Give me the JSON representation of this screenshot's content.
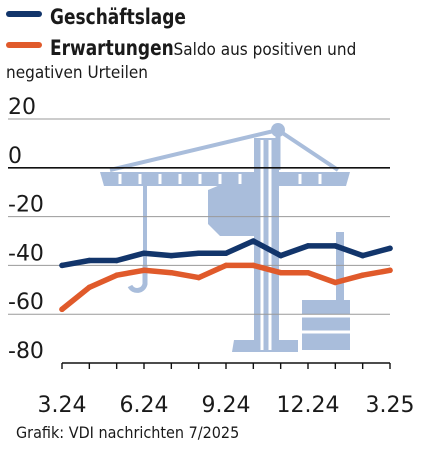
{
  "chart_data": {
    "type": "line",
    "title": "",
    "xlabel": "",
    "ylabel": "",
    "ylim": [
      -80,
      20
    ],
    "yticks": [
      20,
      0,
      -20,
      -40,
      -60,
      -80
    ],
    "x_tick_labels": [
      "3.24",
      "6.24",
      "9.24",
      "12.24",
      "3.25"
    ],
    "x": [
      "3.24",
      "4.24",
      "5.24",
      "6.24",
      "7.24",
      "8.24",
      "9.24",
      "10.24",
      "11.24",
      "12.24",
      "1.25",
      "2.25",
      "3.25"
    ],
    "series": [
      {
        "name": "Geschäftslage",
        "color": "#12356b",
        "values": [
          -40,
          -38,
          -38,
          -35,
          -36,
          -35,
          -35,
          -30,
          -36,
          -32,
          -32,
          -36,
          -33
        ]
      },
      {
        "name": "Erwartungen",
        "color": "#e05a2b",
        "values": [
          -58,
          -49,
          -44,
          -42,
          -43,
          -45,
          -40,
          -40,
          -43,
          -43,
          -47,
          -44,
          -42
        ]
      }
    ],
    "grid": true,
    "legend_position": "top-left"
  },
  "legend": {
    "note_line1": "Saldo aus positiven und",
    "note_line2": "negativen Urteilen"
  },
  "source": "Grafik: VDI nachrichten 7/2025",
  "colors": {
    "crane": "#a9bddb",
    "gridline": "#9a9a9a",
    "zero_line": "#111111"
  },
  "background_icon": "construction-crane-icon"
}
